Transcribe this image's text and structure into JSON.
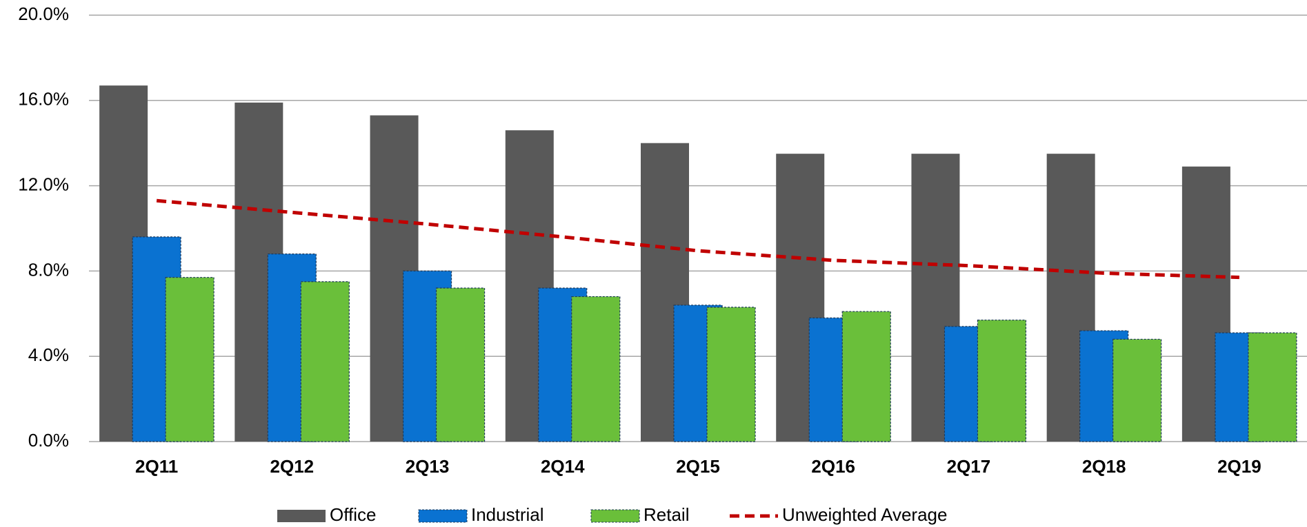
{
  "chart_data": {
    "type": "bar",
    "categories": [
      "2Q11",
      "2Q12",
      "2Q13",
      "2Q14",
      "2Q15",
      "2Q16",
      "2Q17",
      "2Q18",
      "2Q19"
    ],
    "series": [
      {
        "name": "Office",
        "color": "#595959",
        "values": [
          16.7,
          15.9,
          15.3,
          14.6,
          14.0,
          13.5,
          13.5,
          13.5,
          12.9
        ]
      },
      {
        "name": "Industrial",
        "color": "#0a72d1",
        "values": [
          9.6,
          8.8,
          8.0,
          7.2,
          6.4,
          5.8,
          5.4,
          5.2,
          5.1
        ]
      },
      {
        "name": "Retail",
        "color": "#6abf3a",
        "values": [
          7.7,
          7.5,
          7.2,
          6.8,
          6.3,
          6.1,
          5.7,
          4.8,
          5.1
        ]
      },
      {
        "name": "Unweighted Average",
        "type": "line",
        "color": "#c00000",
        "values": [
          11.3,
          10.75,
          10.2,
          9.6,
          8.95,
          8.5,
          8.25,
          7.9,
          7.7
        ]
      }
    ],
    "ylim": [
      0,
      20
    ],
    "yticks": [
      {
        "value": 0,
        "label": "0.0%"
      },
      {
        "value": 4,
        "label": "4.0%"
      },
      {
        "value": 8,
        "label": "8.0%"
      },
      {
        "value": 12,
        "label": "12.0%"
      },
      {
        "value": 16,
        "label": "16.0%"
      },
      {
        "value": 20,
        "label": "20.0%"
      }
    ],
    "grid": true,
    "legend": "bottom"
  }
}
